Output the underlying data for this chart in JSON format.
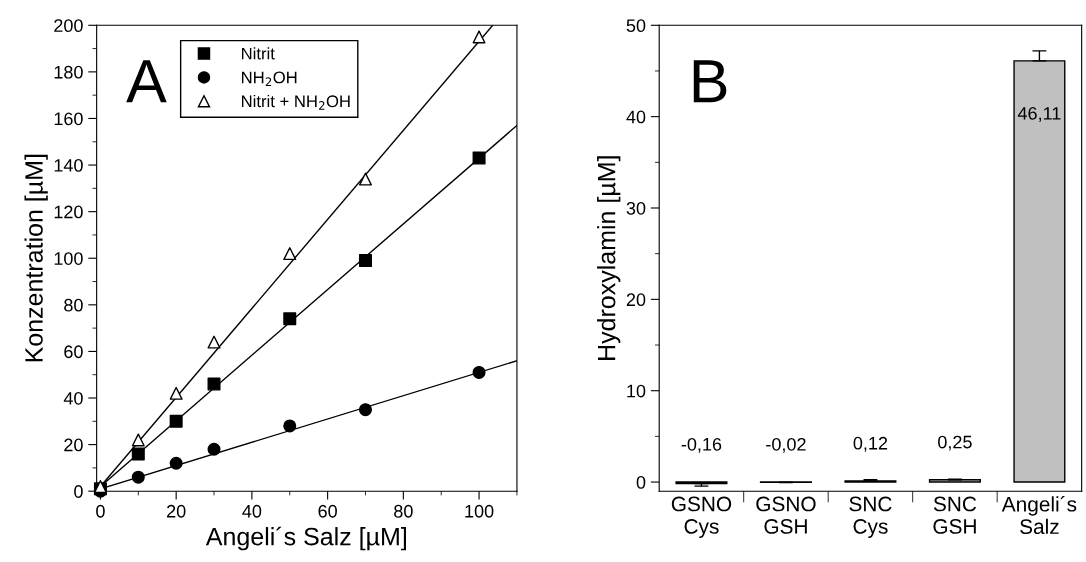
{
  "chart_data": [
    {
      "type": "scatter",
      "xlabel": "Angeli´s Salz [µM]",
      "ylabel": "Konzentration [µM]",
      "annotations": [
        "A"
      ],
      "xlim": [
        -1,
        110
      ],
      "xticks": [
        0,
        20,
        40,
        60,
        80,
        100
      ],
      "ylim": [
        0,
        200
      ],
      "yticks": [
        0,
        20,
        40,
        60,
        80,
        100,
        120,
        140,
        160,
        180,
        200
      ],
      "legend": "top left",
      "grid": false,
      "series": [
        {
          "name": "Nitrit",
          "color": "#000000",
          "marker": "square",
          "x": [
            0,
            10,
            20,
            30,
            50,
            70,
            100
          ],
          "values": [
            1,
            16,
            30,
            46,
            74,
            99,
            143
          ]
        },
        {
          "name": "NH$_{2}$OH",
          "color": "#000000",
          "marker": "circle",
          "x": [
            0,
            10,
            20,
            30,
            50,
            70,
            100
          ],
          "values": [
            0,
            6,
            12,
            18,
            28,
            35,
            51
          ]
        },
        {
          "name": "Nitrit + NH$_{2}$OH",
          "color": "#ffffff",
          "marker": "triangle",
          "x": [
            0,
            10,
            20,
            30,
            50,
            70,
            100
          ],
          "values": [
            2,
            22,
            42,
            64,
            102,
            134,
            195
          ]
        },
        {
          "type": "line",
          "color": "#000000",
          "x": [
            0,
            110
          ],
          "values": [
            2,
            157
          ]
        },
        {
          "type": "line",
          "color": "#000000",
          "x": [
            0,
            110
          ],
          "values": [
            1,
            56
          ]
        },
        {
          "type": "line",
          "color": "#000000",
          "x": [
            0,
            103.6
          ],
          "values": [
            2,
            200
          ]
        }
      ]
    },
    {
      "type": "bar",
      "ylabel": "Hydroxylamin [µM]",
      "annotations": [
        "B"
      ],
      "categories": [
        "GSNO\nCys",
        "GSNO\nGSH",
        "SNC\nCys",
        "SNC\nGSH",
        "Angeli´s\nSalz"
      ],
      "ylim": [
        -1,
        50
      ],
      "yticks": [
        0,
        10,
        20,
        30,
        40,
        50
      ],
      "grid": false,
      "series": [
        {
          "color": "#c0c0c0",
          "values": [
            -0.16,
            -0.02,
            0.12,
            0.25,
            46.11
          ],
          "errors": [
            [
              -0.45,
              -0.16
            ],
            [
              -0.06,
              -0.02
            ],
            [
              0.12,
              0.25
            ],
            [
              0.25,
              0.32
            ],
            [
              46.11,
              47.2
            ]
          ],
          "value_labels": [
            "-0,16",
            "-0,02",
            "0,12",
            "0,25",
            "46,11"
          ]
        }
      ]
    }
  ]
}
